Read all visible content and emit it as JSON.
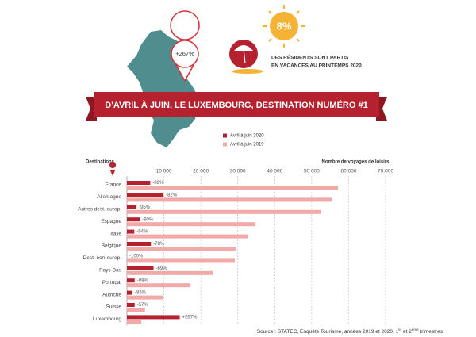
{
  "map": {
    "pin_label": "+267%"
  },
  "highlight": {
    "value_label": "8%",
    "lines": [
      "DES RÉSIDENTS SONT PARTIS",
      "EN VACANCES AU PRINTEMPS 2020"
    ]
  },
  "banner": "D'AVRIL À JUIN, LE LUXEMBOURG, DESTINATION NUMÉRO #1",
  "chart_data": {
    "type": "bar",
    "orientation": "horizontal",
    "category_axis_label": "Destinations",
    "x_axis_label": "Nombre de voyages de loisirs",
    "categories": [
      "France",
      "Allemagne",
      "Autres dest. europ.",
      "Espagne",
      "Italie",
      "Belgique",
      "Dest. non-europ.",
      "Pays-Bas",
      "Portugal",
      "Autriche",
      "Suisse",
      "Luxembourg"
    ],
    "series": [
      {
        "name": "Avril à juin 2020",
        "color": "#b5212e",
        "values": [
          6300,
          9900,
          2600,
          3500,
          2000,
          6500,
          0,
          7200,
          2100,
          1500,
          2100,
          14300
        ]
      },
      {
        "name": "Avril à juin 2019",
        "color": "#f2aaa9",
        "values": [
          57100,
          55400,
          52600,
          34800,
          32800,
          29400,
          29200,
          23200,
          17200,
          9700,
          4900,
          3900
        ]
      }
    ],
    "changes": [
      "-89%",
      "-82%",
      "-95%",
      "-90%",
      "-94%",
      "-78%",
      "-100%",
      "-69%",
      "-88%",
      "-85%",
      "-57%",
      "+267%"
    ],
    "xlim": [
      0,
      70000
    ],
    "xticks": [
      {
        "value": 10000,
        "label": "10 000"
      },
      {
        "value": 20000,
        "label": "20 000"
      },
      {
        "value": 30000,
        "label": "30 000"
      },
      {
        "value": 40000,
        "label": "40 000"
      },
      {
        "value": 50000,
        "label": "50 000"
      },
      {
        "value": 60000,
        "label": "60 000"
      },
      {
        "value": 70000,
        "label": "70.000"
      }
    ],
    "grid": true
  },
  "source": [
    "Source : STATEC, Enquête Tourisme, années 2019 et 2020, 1",
    "er",
    " et 2",
    "ème",
    " trimestres"
  ]
}
